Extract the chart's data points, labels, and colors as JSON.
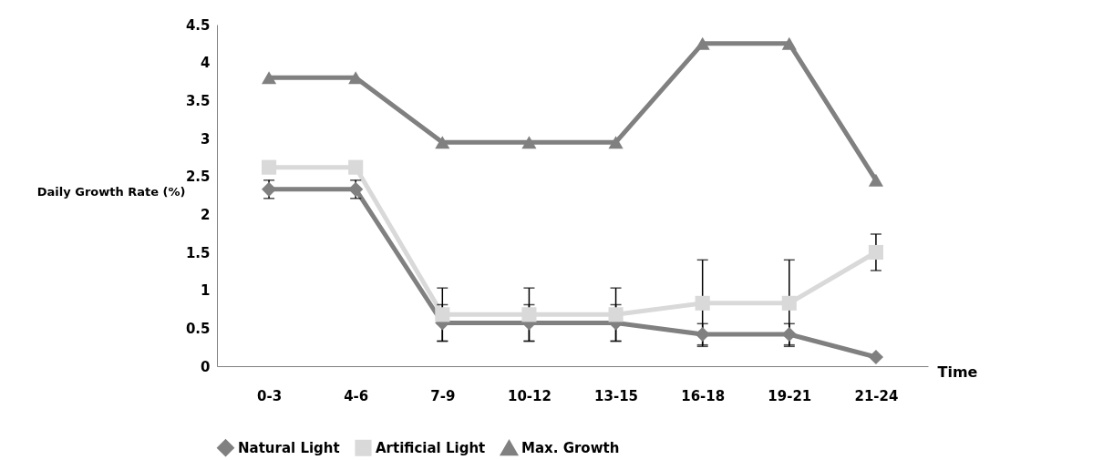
{
  "chart_data": {
    "type": "line",
    "xlabel": "Time",
    "ylabel": "Daily Growth Rate (%)",
    "categories": [
      "0-3",
      "4-6",
      "7-9",
      "10-12",
      "13-15",
      "16-18",
      "19-21",
      "21-24"
    ],
    "series": [
      {
        "name": "Natural Light",
        "color": "#808080",
        "marker": "diamond",
        "values": [
          2.33,
          2.33,
          0.57,
          0.57,
          0.57,
          0.42,
          0.42,
          0.12
        ],
        "errors": [
          0.12,
          0.12,
          0.24,
          0.24,
          0.24,
          0.14,
          0.14,
          null
        ]
      },
      {
        "name": "Artificial Light",
        "color": "#d9d9d9",
        "marker": "square",
        "values": [
          2.62,
          2.62,
          0.68,
          0.68,
          0.68,
          0.83,
          0.83,
          1.5
        ],
        "errors": [
          null,
          null,
          0.35,
          0.35,
          0.35,
          0.57,
          0.57,
          0.24
        ]
      },
      {
        "name": "Max. Growth",
        "color": "#808080",
        "marker": "triangle",
        "values": [
          3.8,
          3.8,
          2.95,
          2.95,
          2.95,
          4.25,
          4.25,
          2.45
        ]
      }
    ],
    "ylim": [
      0,
      4.5
    ],
    "yticks": [
      0,
      0.5,
      1,
      1.5,
      2,
      2.5,
      3,
      3.5,
      4,
      4.5
    ],
    "grid": false,
    "legend": "bottom",
    "line_style": "solid"
  }
}
